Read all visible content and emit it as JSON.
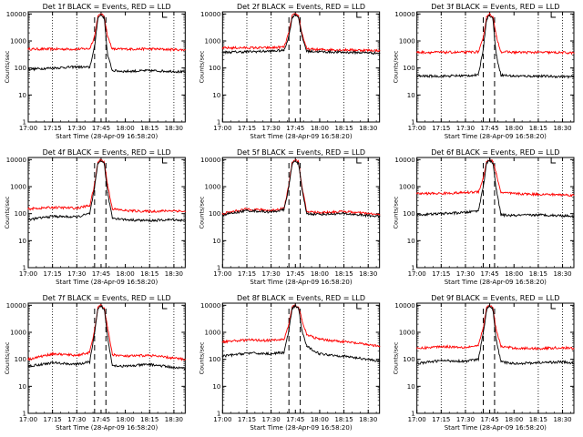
{
  "colors": {
    "events": "#000000",
    "lld": "#ff0000",
    "axes": "#000000",
    "background": "#ffffff"
  },
  "chart_data": [
    {
      "type": "line",
      "title": "Det 1f BLACK = Events, RED = LLD",
      "xlabel": "Start Time (28-Apr-09 16:58:20)",
      "ylabel": "Counts/sec",
      "ylog": true,
      "ylim": [
        1,
        12000
      ],
      "xlim": [
        "17:00",
        "18:37"
      ],
      "x_ticks": [
        "17:00",
        "17:15",
        "17:30",
        "17:45",
        "18:00",
        "18:15",
        "18:30"
      ],
      "y_ticks": [
        "1",
        "10",
        "100",
        "1000",
        "10000"
      ],
      "dotted_vlines": [
        "17:15",
        "17:30",
        "18:15",
        "18:30"
      ],
      "dashed_vlines": [
        "17:41",
        "17:48"
      ],
      "grid": false,
      "legend": "in title",
      "series": [
        {
          "color": "#ff0000",
          "x": [
            "17:00",
            "17:15",
            "17:30",
            "17:38",
            "17:41",
            "17:43",
            "17:45",
            "17:47",
            "17:49",
            "17:52",
            "18:00",
            "18:15",
            "18:30",
            "18:37"
          ],
          "y": [
            500,
            500,
            500,
            520,
            1500,
            8000,
            10000,
            8000,
            1500,
            500,
            500,
            510,
            480,
            470
          ]
        },
        {
          "color": "#000000",
          "x": [
            "17:00",
            "17:15",
            "17:30",
            "17:38",
            "17:41",
            "17:43",
            "17:45",
            "17:47",
            "17:49",
            "17:52",
            "18:00",
            "18:15",
            "18:30",
            "18:37"
          ],
          "y": [
            90,
            100,
            110,
            105,
            600,
            7000,
            9500,
            7000,
            300,
            80,
            75,
            80,
            75,
            70
          ]
        }
      ]
    },
    {
      "type": "line",
      "title": "Det 2f BLACK = Events, RED = LLD",
      "xlabel": "Start Time (28-Apr-09 16:58:20)",
      "ylabel": "Counts/sec",
      "ylog": true,
      "ylim": [
        1,
        12000
      ],
      "xlim": [
        "17:00",
        "18:37"
      ],
      "x_ticks": [
        "17:00",
        "17:15",
        "17:30",
        "17:45",
        "18:00",
        "18:15",
        "18:30"
      ],
      "y_ticks": [
        "1",
        "10",
        "100",
        "1000",
        "10000"
      ],
      "dotted_vlines": [
        "17:15",
        "17:30",
        "18:15",
        "18:30"
      ],
      "dashed_vlines": [
        "17:41",
        "17:48"
      ],
      "grid": false,
      "legend": "in title",
      "series": [
        {
          "color": "#ff0000",
          "x": [
            "17:00",
            "17:15",
            "17:30",
            "17:38",
            "17:41",
            "17:43",
            "17:45",
            "17:47",
            "17:49",
            "17:52",
            "18:00",
            "18:15",
            "18:30",
            "18:37"
          ],
          "y": [
            550,
            560,
            560,
            600,
            2000,
            8500,
            10000,
            8500,
            2000,
            500,
            480,
            470,
            450,
            440
          ]
        },
        {
          "color": "#000000",
          "x": [
            "17:00",
            "17:15",
            "17:30",
            "17:38",
            "17:41",
            "17:43",
            "17:45",
            "17:47",
            "17:49",
            "17:52",
            "18:00",
            "18:15",
            "18:30",
            "18:37"
          ],
          "y": [
            380,
            400,
            420,
            450,
            1500,
            7500,
            9500,
            7500,
            1500,
            420,
            400,
            380,
            370,
            350
          ]
        }
      ]
    },
    {
      "type": "line",
      "title": "Det 3f BLACK = Events, RED = LLD",
      "xlabel": "Start Time (28-Apr-09 16:58:20)",
      "ylabel": "Counts/sec",
      "ylog": true,
      "ylim": [
        1,
        12000
      ],
      "xlim": [
        "17:00",
        "18:37"
      ],
      "x_ticks": [
        "17:00",
        "17:15",
        "17:30",
        "17:45",
        "18:00",
        "18:15",
        "18:30"
      ],
      "y_ticks": [
        "1",
        "10",
        "100",
        "1000",
        "10000"
      ],
      "dotted_vlines": [
        "17:15",
        "17:30",
        "18:15",
        "18:30"
      ],
      "dashed_vlines": [
        "17:41",
        "17:48"
      ],
      "grid": false,
      "legend": "in title",
      "series": [
        {
          "color": "#ff0000",
          "x": [
            "17:00",
            "17:15",
            "17:30",
            "17:38",
            "17:41",
            "17:43",
            "17:45",
            "17:47",
            "17:49",
            "17:52",
            "18:00",
            "18:15",
            "18:30",
            "18:37"
          ],
          "y": [
            380,
            380,
            380,
            400,
            1200,
            8000,
            10000,
            8000,
            1500,
            400,
            380,
            380,
            370,
            360
          ]
        },
        {
          "color": "#000000",
          "x": [
            "17:00",
            "17:15",
            "17:30",
            "17:38",
            "17:41",
            "17:43",
            "17:45",
            "17:47",
            "17:49",
            "17:52",
            "18:00",
            "18:15",
            "18:30",
            "18:37"
          ],
          "y": [
            50,
            50,
            52,
            55,
            500,
            6500,
            9000,
            6500,
            300,
            55,
            50,
            50,
            48,
            47
          ]
        }
      ]
    },
    {
      "type": "line",
      "title": "Det 4f BLACK = Events, RED = LLD",
      "xlabel": "Start Time (28-Apr-09 16:58:20)",
      "ylabel": "Counts/sec",
      "ylog": true,
      "ylim": [
        1,
        12000
      ],
      "xlim": [
        "17:00",
        "18:37"
      ],
      "x_ticks": [
        "17:00",
        "17:15",
        "17:30",
        "17:45",
        "18:00",
        "18:15",
        "18:30"
      ],
      "y_ticks": [
        "1",
        "10",
        "100",
        "1000",
        "10000"
      ],
      "dotted_vlines": [
        "17:15",
        "17:30",
        "18:15",
        "18:30"
      ],
      "dashed_vlines": [
        "17:41",
        "17:48"
      ],
      "grid": false,
      "legend": "in title",
      "series": [
        {
          "color": "#ff0000",
          "x": [
            "17:00",
            "17:15",
            "17:30",
            "17:38",
            "17:41",
            "17:43",
            "17:45",
            "17:47",
            "17:49",
            "17:52",
            "18:00",
            "18:15",
            "18:30",
            "18:37"
          ],
          "y": [
            150,
            170,
            160,
            200,
            1200,
            8000,
            10000,
            8000,
            1200,
            150,
            130,
            120,
            130,
            120
          ]
        },
        {
          "color": "#000000",
          "x": [
            "17:00",
            "17:15",
            "17:30",
            "17:38",
            "17:41",
            "17:43",
            "17:45",
            "17:47",
            "17:49",
            "17:52",
            "18:00",
            "18:15",
            "18:30",
            "18:37"
          ],
          "y": [
            60,
            80,
            75,
            100,
            900,
            7000,
            9500,
            7000,
            600,
            70,
            60,
            55,
            60,
            55
          ]
        }
      ]
    },
    {
      "type": "line",
      "title": "Det 5f BLACK = Events, RED = LLD",
      "xlabel": "Start Time (28-Apr-09 16:58:20)",
      "ylabel": "Counts/sec",
      "ylog": true,
      "ylim": [
        1,
        12000
      ],
      "xlim": [
        "17:00",
        "18:37"
      ],
      "x_ticks": [
        "17:00",
        "17:15",
        "17:30",
        "17:45",
        "18:00",
        "18:15",
        "18:30"
      ],
      "y_ticks": [
        "1",
        "10",
        "100",
        "1000",
        "10000"
      ],
      "dotted_vlines": [
        "17:15",
        "17:30",
        "18:15",
        "18:30"
      ],
      "dashed_vlines": [
        "17:41",
        "17:48"
      ],
      "grid": false,
      "legend": "in title",
      "series": [
        {
          "color": "#ff0000",
          "x": [
            "17:00",
            "17:15",
            "17:30",
            "17:38",
            "17:41",
            "17:43",
            "17:45",
            "17:47",
            "17:49",
            "17:52",
            "18:00",
            "18:15",
            "18:30",
            "18:37"
          ],
          "y": [
            100,
            150,
            130,
            160,
            1200,
            8000,
            10000,
            8000,
            1000,
            120,
            110,
            120,
            100,
            90
          ]
        },
        {
          "color": "#000000",
          "x": [
            "17:00",
            "17:15",
            "17:30",
            "17:38",
            "17:41",
            "17:43",
            "17:45",
            "17:47",
            "17:49",
            "17:52",
            "18:00",
            "18:15",
            "18:30",
            "18:37"
          ],
          "y": [
            90,
            130,
            115,
            140,
            1000,
            7000,
            9500,
            7000,
            800,
            100,
            95,
            100,
            85,
            80
          ]
        }
      ]
    },
    {
      "type": "line",
      "title": "Det 6f BLACK = Events, RED = LLD",
      "xlabel": "Start Time (28-Apr-09 16:58:20)",
      "ylabel": "Counts/sec",
      "ylog": true,
      "ylim": [
        1,
        12000
      ],
      "xlim": [
        "17:00",
        "18:37"
      ],
      "x_ticks": [
        "17:00",
        "17:15",
        "17:30",
        "17:45",
        "18:00",
        "18:15",
        "18:30"
      ],
      "y_ticks": [
        "1",
        "10",
        "100",
        "1000",
        "10000"
      ],
      "dotted_vlines": [
        "17:15",
        "17:30",
        "18:15",
        "18:30"
      ],
      "dashed_vlines": [
        "17:41",
        "17:48"
      ],
      "grid": false,
      "legend": "in title",
      "series": [
        {
          "color": "#ff0000",
          "x": [
            "17:00",
            "17:15",
            "17:30",
            "17:38",
            "17:41",
            "17:43",
            "17:45",
            "17:47",
            "17:49",
            "17:52",
            "18:00",
            "18:15",
            "18:30",
            "18:37"
          ],
          "y": [
            550,
            560,
            600,
            650,
            2000,
            8500,
            10000,
            8500,
            3000,
            600,
            550,
            520,
            500,
            480
          ]
        },
        {
          "color": "#000000",
          "x": [
            "17:00",
            "17:15",
            "17:30",
            "17:38",
            "17:41",
            "17:43",
            "17:45",
            "17:47",
            "17:49",
            "17:52",
            "18:00",
            "18:15",
            "18:30",
            "18:37"
          ],
          "y": [
            90,
            100,
            110,
            130,
            1000,
            7500,
            9500,
            7500,
            800,
            90,
            85,
            90,
            85,
            80
          ]
        }
      ]
    },
    {
      "type": "line",
      "title": "Det 7f BLACK = Events, RED = LLD",
      "xlabel": "Start Time (28-Apr-09 16:58:20)",
      "ylabel": "Counts/sec",
      "ylog": true,
      "ylim": [
        1,
        12000
      ],
      "xlim": [
        "17:00",
        "18:37"
      ],
      "x_ticks": [
        "17:00",
        "17:15",
        "17:30",
        "17:45",
        "18:00",
        "18:15",
        "18:30"
      ],
      "y_ticks": [
        "1",
        "10",
        "100",
        "1000",
        "10000"
      ],
      "dotted_vlines": [
        "17:15",
        "17:30",
        "18:15",
        "18:30"
      ],
      "dashed_vlines": [
        "17:41",
        "17:48"
      ],
      "grid": false,
      "legend": "in title",
      "series": [
        {
          "color": "#ff0000",
          "x": [
            "17:00",
            "17:15",
            "17:30",
            "17:38",
            "17:41",
            "17:43",
            "17:45",
            "17:47",
            "17:49",
            "17:52",
            "18:00",
            "18:15",
            "18:30",
            "18:37"
          ],
          "y": [
            100,
            160,
            140,
            180,
            1200,
            8000,
            10000,
            8000,
            1500,
            150,
            130,
            140,
            110,
            100
          ]
        },
        {
          "color": "#000000",
          "x": [
            "17:00",
            "17:15",
            "17:30",
            "17:38",
            "17:41",
            "17:43",
            "17:45",
            "17:47",
            "17:49",
            "17:52",
            "18:00",
            "18:15",
            "18:30",
            "18:37"
          ],
          "y": [
            55,
            75,
            65,
            80,
            900,
            7000,
            9500,
            7000,
            700,
            60,
            55,
            65,
            50,
            45
          ]
        }
      ]
    },
    {
      "type": "line",
      "title": "Det 8f BLACK = Events, RED = LLD",
      "xlabel": "Start Time (28-Apr-09 16:58:20)",
      "ylabel": "Counts/sec",
      "ylog": true,
      "ylim": [
        1,
        12000
      ],
      "xlim": [
        "17:00",
        "18:37"
      ],
      "x_ticks": [
        "17:00",
        "17:15",
        "17:30",
        "17:45",
        "18:00",
        "18:15",
        "18:30"
      ],
      "y_ticks": [
        "1",
        "10",
        "100",
        "1000",
        "10000"
      ],
      "dotted_vlines": [
        "17:15",
        "17:30",
        "18:15",
        "18:30"
      ],
      "dashed_vlines": [
        "17:41",
        "17:48"
      ],
      "grid": false,
      "legend": "in title",
      "series": [
        {
          "color": "#ff0000",
          "x": [
            "17:00",
            "17:15",
            "17:30",
            "17:38",
            "17:41",
            "17:43",
            "17:45",
            "17:47",
            "17:49",
            "17:52",
            "18:00",
            "18:15",
            "18:30",
            "18:37"
          ],
          "y": [
            450,
            520,
            500,
            550,
            2000,
            8500,
            10000,
            8500,
            3000,
            800,
            550,
            450,
            350,
            300
          ]
        },
        {
          "color": "#000000",
          "x": [
            "17:00",
            "17:15",
            "17:30",
            "17:38",
            "17:41",
            "17:43",
            "17:45",
            "17:47",
            "17:49",
            "17:52",
            "18:00",
            "18:15",
            "18:30",
            "18:37"
          ],
          "y": [
            130,
            170,
            160,
            180,
            1200,
            7500,
            9500,
            7500,
            1200,
            300,
            160,
            130,
            100,
            85
          ]
        }
      ]
    },
    {
      "type": "line",
      "title": "Det 9f BLACK = Events, RED = LLD",
      "xlabel": "Start Time (28-Apr-09 16:58:20)",
      "ylabel": "Counts/sec",
      "ylog": true,
      "ylim": [
        1,
        12000
      ],
      "xlim": [
        "17:00",
        "18:37"
      ],
      "x_ticks": [
        "17:00",
        "17:15",
        "17:30",
        "17:45",
        "18:00",
        "18:15",
        "18:30"
      ],
      "y_ticks": [
        "1",
        "10",
        "100",
        "1000",
        "10000"
      ],
      "dotted_vlines": [
        "17:15",
        "17:30",
        "18:15",
        "18:30"
      ],
      "dashed_vlines": [
        "17:41",
        "17:48"
      ],
      "grid": false,
      "legend": "in title",
      "series": [
        {
          "color": "#ff0000",
          "x": [
            "17:00",
            "17:15",
            "17:30",
            "17:38",
            "17:41",
            "17:43",
            "17:45",
            "17:47",
            "17:49",
            "17:52",
            "18:00",
            "18:15",
            "18:30",
            "18:37"
          ],
          "y": [
            250,
            300,
            280,
            320,
            1500,
            8000,
            10000,
            8000,
            1200,
            300,
            260,
            250,
            270,
            250
          ]
        },
        {
          "color": "#000000",
          "x": [
            "17:00",
            "17:15",
            "17:30",
            "17:38",
            "17:41",
            "17:43",
            "17:45",
            "17:47",
            "17:49",
            "17:52",
            "18:00",
            "18:15",
            "18:30",
            "18:37"
          ],
          "y": [
            70,
            90,
            85,
            100,
            900,
            7000,
            9500,
            7000,
            500,
            80,
            70,
            75,
            80,
            70
          ]
        }
      ]
    }
  ]
}
